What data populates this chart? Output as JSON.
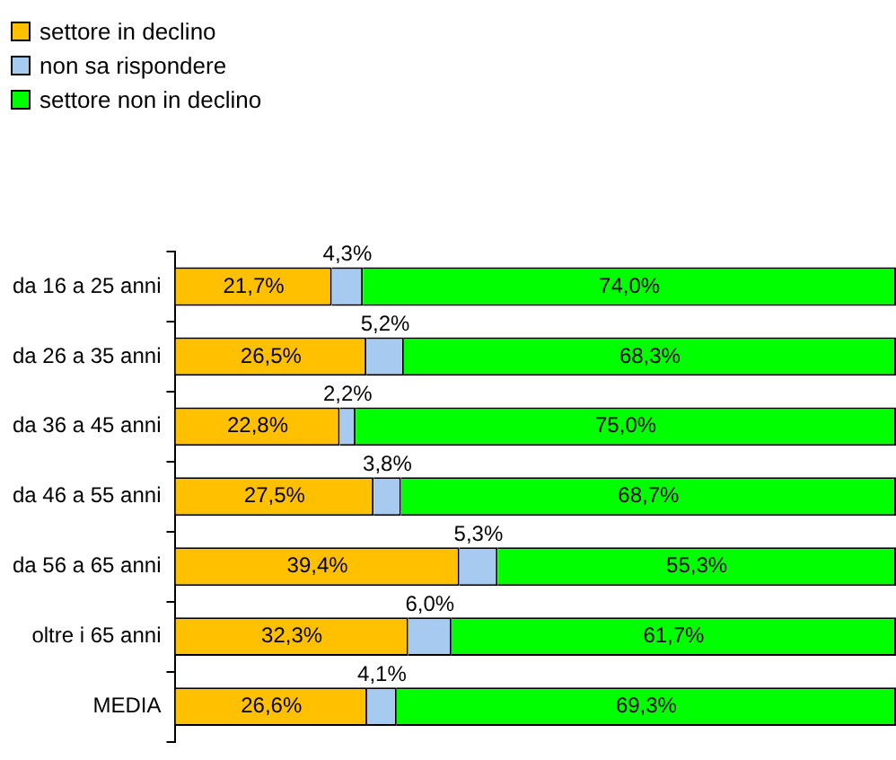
{
  "chart_data": {
    "type": "bar",
    "orientation": "horizontal",
    "stacked": true,
    "grid": false,
    "legend": "top left",
    "tick_labels": "y",
    "categories": [
      "da 16 a 25 anni",
      "da 26 a 35 anni",
      "da 36 a 45 anni",
      "da 46 a 55 anni",
      "da 56 a 65 anni",
      "oltre i 65 anni",
      "MEDIA"
    ],
    "series": [
      {
        "name": "settore in declino",
        "color": "#ffc000",
        "values": [
          21.7,
          26.5,
          22.8,
          27.5,
          39.4,
          32.3,
          26.6
        ],
        "value_labels": [
          "21,7%",
          "26,5%",
          "22,8%",
          "27,5%",
          "39,4%",
          "32,3%",
          "26,6%"
        ]
      },
      {
        "name": "non sa rispondere",
        "color": "#a6caf0",
        "values": [
          4.3,
          5.2,
          2.2,
          3.8,
          5.3,
          6.0,
          4.1
        ],
        "value_labels": [
          "4,3%",
          "5,2%",
          "2,2%",
          "3,8%",
          "5,3%",
          "6,0%",
          "4,1%"
        ]
      },
      {
        "name": "settore non in declino",
        "color": "#00ff00",
        "values": [
          74.0,
          68.3,
          75.0,
          68.7,
          55.3,
          61.7,
          69.3
        ],
        "value_labels": [
          "74,0%",
          "68,3%",
          "75,0%",
          "68,7%",
          "55,3%",
          "61,7%",
          "69,3%"
        ]
      }
    ]
  }
}
